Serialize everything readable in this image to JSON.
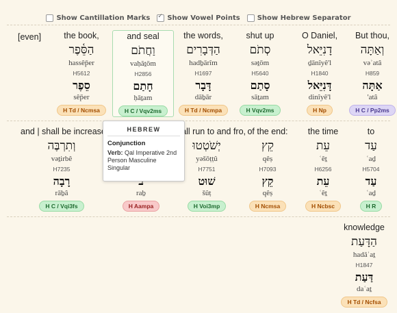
{
  "options": [
    {
      "label": "Show Cantillation Marks",
      "checked": false
    },
    {
      "label": "Show Vowel Points",
      "checked": true
    },
    {
      "label": "Show Hebrew Separator",
      "checked": false
    }
  ],
  "even_label": "[even]",
  "row1": [
    {
      "gloss": "the book,",
      "heb": "הַסֵּ֫פֶר",
      "translit": "hassêp̄er",
      "strong": "H5612",
      "lemma": "סֵפֶר",
      "ltrans": "sêp̄er",
      "tag": "H Td / Ncmsa",
      "color": "orange"
    },
    {
      "gloss": "and seal",
      "heb": "וַחֲתֹם",
      "translit": "vaḥăṯōm",
      "strong": "H2856",
      "lemma": "חָתַם",
      "ltrans": "ḥāṯam",
      "tag": "H C / Vqv2ms",
      "color": "green"
    },
    {
      "gloss": "the words,",
      "heb": "הַדְּבָרִים",
      "translit": "hadḇārîm",
      "strong": "H1697",
      "lemma": "דָּבָר",
      "ltrans": "dāḇār",
      "tag": "H Td / Ncmpa",
      "color": "orange"
    },
    {
      "gloss": "shut up",
      "heb": "סְתֹם",
      "translit": "səṯōm",
      "strong": "H5640",
      "lemma": "סָתַם",
      "ltrans": "sāṯam",
      "tag": "H Vqv2ms",
      "color": "green"
    },
    {
      "gloss": "O Daniel,",
      "heb": "דָנִיֵּאל",
      "translit": "ḏānîyê'l",
      "strong": "H1840",
      "lemma": "דָּנִיֵּאל",
      "ltrans": "dinîyê'l",
      "tag": "H Np",
      "color": "orange"
    },
    {
      "gloss": "But thou,",
      "heb": "וְאַתָּה",
      "translit": "vəʾatâ",
      "strong": "H859",
      "lemma": "אַתָּה",
      "ltrans": "'atâ",
      "tag": "H C / Pp2ms",
      "color": "purple"
    }
  ],
  "row2": [
    {
      "gloss": "and | shall be increased",
      "heb": "וְתִרְבֶּה",
      "translit": "vəṯirbê",
      "strong": "H7235",
      "lemma": "רָבָה",
      "ltrans": "rāḇâ",
      "tag": "H C / Vqi3fs",
      "color": "green"
    },
    {
      "gloss": "",
      "heb": "",
      "translit": "",
      "strong": "",
      "lemma": "ב",
      "ltrans": "raḇ",
      "tag": "H Aampa",
      "color": "red"
    },
    {
      "gloss": "shall run to and fro,",
      "heb": "יְשֹׁטְטוּ",
      "translit": "yəšōṭṭû",
      "strong": "H7751",
      "lemma": "שׁוּט",
      "ltrans": "šûṭ",
      "tag": "H Voi3mp",
      "color": "green"
    },
    {
      "gloss": "of the end:",
      "heb": "קֵץ",
      "translit": "qêṣ",
      "strong": "H7093",
      "lemma": "קֵץ",
      "ltrans": "qêṣ",
      "tag": "H Ncmsa",
      "color": "orange"
    },
    {
      "gloss": "the time",
      "heb": "עֵת",
      "translit": "ʿêṯ",
      "strong": "H6256",
      "lemma": "עֵת",
      "ltrans": "ʿêṯ",
      "tag": "H Ncbsc",
      "color": "orange"
    },
    {
      "gloss": "to",
      "heb": "עַד",
      "translit": "ʿaḏ",
      "strong": "H5704",
      "lemma": "עַד",
      "ltrans": "ʿaḏ",
      "tag": "H R",
      "color": "green"
    }
  ],
  "row3": [
    {
      "gloss": "knowledge",
      "heb": "הַדָּעַת",
      "translit": "hadāʿaṯ",
      "strong": "H1847",
      "lemma": "דַּעַת",
      "ltrans": "daʿaṯ",
      "tag": "H Td / Ncfsa",
      "color": "orange"
    }
  ],
  "tooltip": {
    "header": "HEBREW",
    "title": "Conjunction",
    "verb_label": "Verb:",
    "verb_text": "Qal Imperative 2nd Person Masculine Singular"
  }
}
